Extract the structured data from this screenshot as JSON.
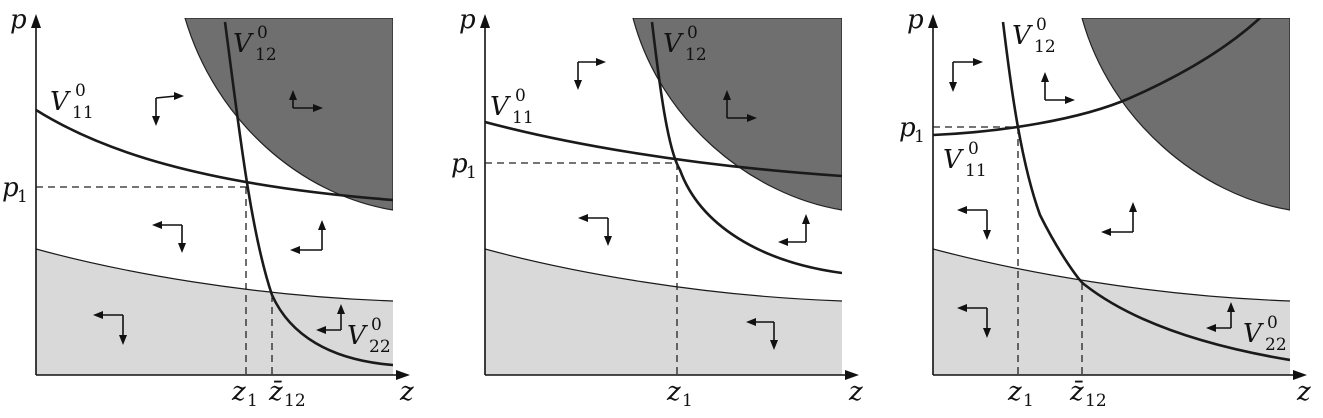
{
  "diagram": {
    "panels": [
      {
        "id": "left",
        "y_axis": "p",
        "x_axis": "z",
        "p_label": "p",
        "p_sub": "1",
        "x_ticks": [
          {
            "main": "z",
            "sub": "1"
          },
          {
            "main": "z̄",
            "sub": "12"
          }
        ],
        "curves": [
          {
            "main": "V",
            "sub": "11",
            "sup": "0"
          },
          {
            "main": "V",
            "sub": "12",
            "sup": "0"
          },
          {
            "main": "V",
            "sub": "22",
            "sup": "0"
          }
        ]
      },
      {
        "id": "middle",
        "y_axis": "p",
        "x_axis": "z",
        "p_label": "p",
        "p_sub": "1",
        "x_ticks": [
          {
            "main": "z",
            "sub": "1"
          }
        ],
        "curves": [
          {
            "main": "V",
            "sub": "11",
            "sup": "0"
          },
          {
            "main": "V",
            "sub": "12",
            "sup": "0"
          }
        ]
      },
      {
        "id": "right",
        "y_axis": "p",
        "x_axis": "z",
        "p_label": "p",
        "p_sub": "1",
        "x_ticks": [
          {
            "main": "z",
            "sub": "1"
          },
          {
            "main": "z̄",
            "sub": "12"
          }
        ],
        "curves": [
          {
            "main": "V",
            "sub": "12",
            "sup": "0"
          },
          {
            "main": "V",
            "sub": "11",
            "sup": "0"
          },
          {
            "main": "V",
            "sub": "22",
            "sup": "0"
          }
        ]
      }
    ]
  }
}
